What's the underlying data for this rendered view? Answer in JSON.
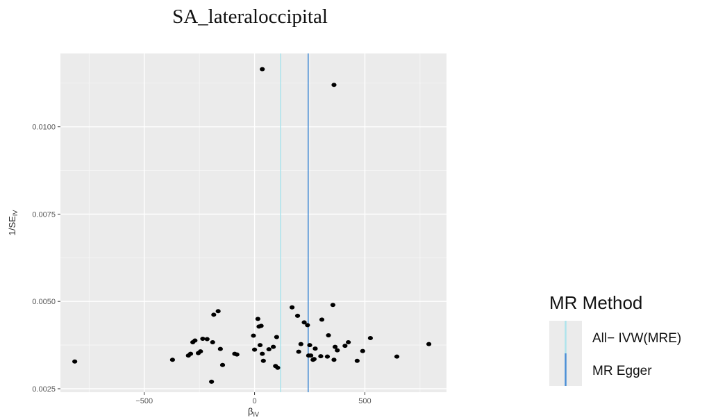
{
  "chart_data": {
    "type": "scatter",
    "title": "SA_lateraloccipital",
    "xlabel": "β",
    "xlabel_sub": "IV",
    "ylabel": "1/SE",
    "ylabel_sub": "IV",
    "xlim": [
      -880,
      870
    ],
    "ylim": [
      0.0024,
      0.0121
    ],
    "x_ticks": [
      -500,
      0,
      500
    ],
    "x_tick_labels": [
      "−500",
      "0",
      "500"
    ],
    "y_ticks": [
      0.0025,
      0.005,
      0.0075,
      0.01
    ],
    "y_tick_labels": [
      "0.0025",
      "0.0050",
      "0.0075",
      "0.0100"
    ],
    "grid": true,
    "legend_position": "right",
    "legend_title": "MR Method",
    "reference_lines": [
      {
        "name": "All− IVW(MRE)",
        "x": 118,
        "color": "#aee4ec"
      },
      {
        "name": "MR Egger",
        "x": 243,
        "color": "#4a8fd6"
      }
    ],
    "points": [
      {
        "x": 35,
        "y": 0.01165
      },
      {
        "x": 360,
        "y": 0.0112
      },
      {
        "x": -815,
        "y": 0.00328
      },
      {
        "x": -372,
        "y": 0.00333
      },
      {
        "x": -300,
        "y": 0.00345
      },
      {
        "x": -290,
        "y": 0.0035
      },
      {
        "x": -280,
        "y": 0.00383
      },
      {
        "x": -270,
        "y": 0.00388
      },
      {
        "x": -255,
        "y": 0.00352
      },
      {
        "x": -245,
        "y": 0.00357
      },
      {
        "x": -235,
        "y": 0.00393
      },
      {
        "x": -215,
        "y": 0.00392
      },
      {
        "x": -195,
        "y": 0.0027
      },
      {
        "x": -190,
        "y": 0.00383
      },
      {
        "x": -185,
        "y": 0.00462
      },
      {
        "x": -165,
        "y": 0.00472
      },
      {
        "x": -155,
        "y": 0.00364
      },
      {
        "x": -145,
        "y": 0.00318
      },
      {
        "x": -90,
        "y": 0.0035
      },
      {
        "x": -80,
        "y": 0.00348
      },
      {
        "x": -5,
        "y": 0.00402
      },
      {
        "x": 0,
        "y": 0.00362
      },
      {
        "x": 15,
        "y": 0.0045
      },
      {
        "x": 20,
        "y": 0.00428
      },
      {
        "x": 25,
        "y": 0.00375
      },
      {
        "x": 30,
        "y": 0.0043
      },
      {
        "x": 35,
        "y": 0.0035
      },
      {
        "x": 40,
        "y": 0.0033
      },
      {
        "x": 65,
        "y": 0.00363
      },
      {
        "x": 85,
        "y": 0.0037
      },
      {
        "x": 95,
        "y": 0.00315
      },
      {
        "x": 100,
        "y": 0.00398
      },
      {
        "x": 105,
        "y": 0.0031
      },
      {
        "x": 170,
        "y": 0.00483
      },
      {
        "x": 195,
        "y": 0.00459
      },
      {
        "x": 200,
        "y": 0.00356
      },
      {
        "x": 210,
        "y": 0.00378
      },
      {
        "x": 225,
        "y": 0.0044
      },
      {
        "x": 240,
        "y": 0.00432
      },
      {
        "x": 245,
        "y": 0.00345
      },
      {
        "x": 250,
        "y": 0.00375
      },
      {
        "x": 255,
        "y": 0.00345
      },
      {
        "x": 265,
        "y": 0.00333
      },
      {
        "x": 270,
        "y": 0.00335
      },
      {
        "x": 275,
        "y": 0.00365
      },
      {
        "x": 300,
        "y": 0.00343
      },
      {
        "x": 305,
        "y": 0.00448
      },
      {
        "x": 330,
        "y": 0.00342
      },
      {
        "x": 335,
        "y": 0.00403
      },
      {
        "x": 355,
        "y": 0.0049
      },
      {
        "x": 360,
        "y": 0.00333
      },
      {
        "x": 365,
        "y": 0.0037
      },
      {
        "x": 375,
        "y": 0.0036
      },
      {
        "x": 410,
        "y": 0.00373
      },
      {
        "x": 425,
        "y": 0.00383
      },
      {
        "x": 465,
        "y": 0.0033
      },
      {
        "x": 490,
        "y": 0.00358
      },
      {
        "x": 525,
        "y": 0.00395
      },
      {
        "x": 645,
        "y": 0.00342
      },
      {
        "x": 790,
        "y": 0.00378
      }
    ]
  }
}
